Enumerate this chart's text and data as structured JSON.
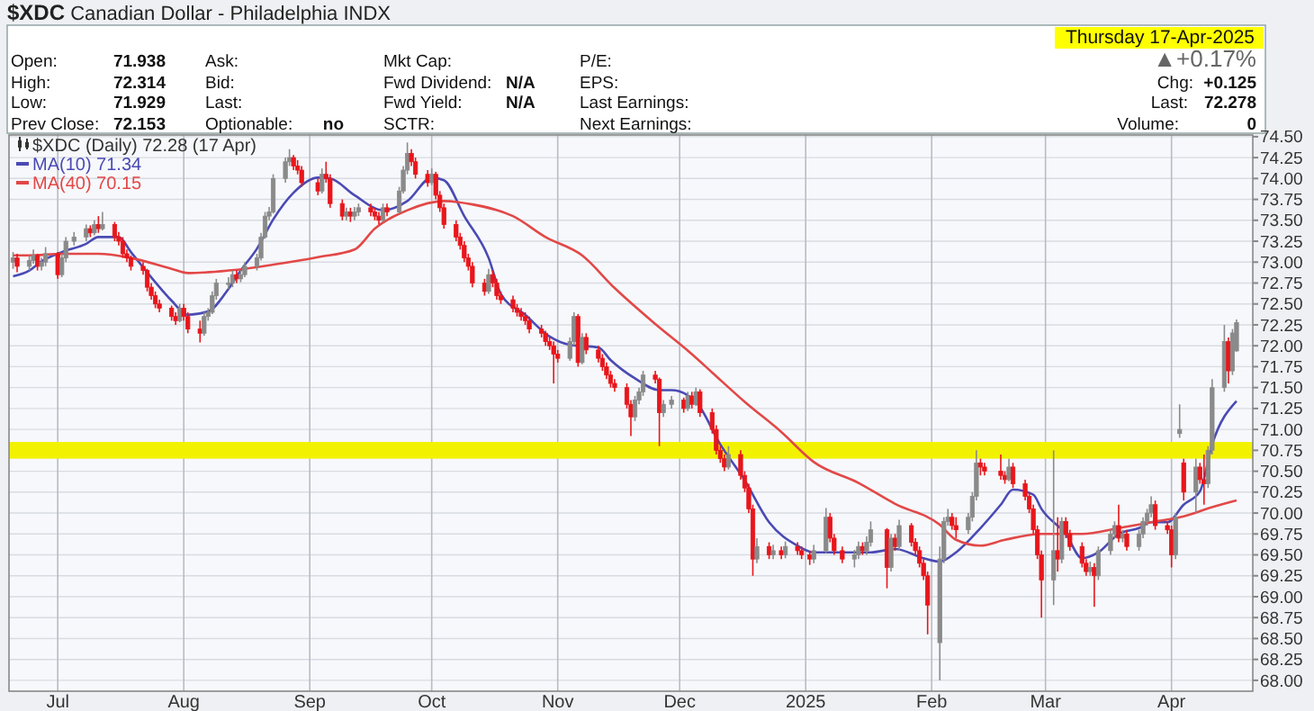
{
  "chart_data": {
    "type": "candlestick",
    "title": "$XDC Canadian Dollar - Philadelphia INDX",
    "annotations": [
      "Open:",
      "71.938",
      "High:",
      "72.314",
      "Low:",
      "71.929",
      "Prev Close:",
      "72.153",
      "Ask:",
      "Bid:",
      "Last:",
      "Optionable:",
      "no",
      "Mkt Cap:",
      "Fwd Dividend:",
      "N/A",
      "Fwd Yield:",
      "N/A",
      "SCTR:",
      "P/E:",
      "EPS:",
      "Last Earnings:",
      "Next Earnings:",
      "Thursday  17-Apr-2025",
      "▲+0.17%",
      "Chg:",
      "+0.125",
      "Last:",
      "72.278",
      "Volume:",
      "0"
    ],
    "xlim": [
      "2024-06-19",
      "2025-04-21"
    ],
    "xticks": [
      {
        "value": "2024-07-01",
        "label": "Jul"
      },
      {
        "value": "2024-08-01",
        "label": "Aug"
      },
      {
        "value": "2024-09-01",
        "label": "Sep"
      },
      {
        "value": "2024-10-01",
        "label": "Oct"
      },
      {
        "value": "2024-11-01",
        "label": "Nov"
      },
      {
        "value": "2024-12-01",
        "label": "Dec"
      },
      {
        "value": "2025-01-01",
        "label": "2025"
      },
      {
        "value": "2025-02-01",
        "label": "Feb"
      },
      {
        "value": "2025-03-01",
        "label": "Mar"
      },
      {
        "value": "2025-04-01",
        "label": "Apr"
      }
    ],
    "ylim": [
      67.87,
      74.52
    ],
    "yticks": [
      {
        "value": 68,
        "label": "68.00"
      },
      {
        "value": 68.25,
        "label": "68.25"
      },
      {
        "value": 68.5,
        "label": "68.50"
      },
      {
        "value": 68.75,
        "label": "68.75"
      },
      {
        "value": 69,
        "label": "69.00"
      },
      {
        "value": 69.25,
        "label": "69.25"
      },
      {
        "value": 69.5,
        "label": "69.50"
      },
      {
        "value": 69.75,
        "label": "69.75"
      },
      {
        "value": 70,
        "label": "70.00"
      },
      {
        "value": 70.25,
        "label": "70.25"
      },
      {
        "value": 70.5,
        "label": "70.50"
      },
      {
        "value": 70.75,
        "label": "70.75"
      },
      {
        "value": 71,
        "label": "71.00"
      },
      {
        "value": 71.25,
        "label": "71.25"
      },
      {
        "value": 71.5,
        "label": "71.50"
      },
      {
        "value": 71.75,
        "label": "71.75"
      },
      {
        "value": 72,
        "label": "72.00"
      },
      {
        "value": 72.25,
        "label": "72.25"
      },
      {
        "value": 72.5,
        "label": "72.50"
      },
      {
        "value": 72.75,
        "label": "72.75"
      },
      {
        "value": 73,
        "label": "73.00"
      },
      {
        "value": 73.25,
        "label": "73.25"
      },
      {
        "value": 73.5,
        "label": "73.50"
      },
      {
        "value": 73.75,
        "label": "73.75"
      },
      {
        "value": 74,
        "label": "74.00"
      },
      {
        "value": 74.25,
        "label": "74.25"
      },
      {
        "value": 74.5,
        "label": "74.50"
      }
    ],
    "grid": true,
    "legend": "top left",
    "bands": [
      {
        "axis": "y",
        "from": 70.65,
        "to": 70.85,
        "color": "#f2f200"
      }
    ],
    "series": [
      {
        "name": "$XDC (Daily) 72.28 (17 Apr)",
        "type": "candlestick",
        "colors": [
          "#8a8a8a",
          "#e8161b",
          "#8a8a8a",
          "#8a8a8a",
          "#e8161b",
          "#8a8a8a",
          "#8a8a8a",
          "#e8161b",
          "#8a8a8a",
          "#8a8a8a",
          "#8a8a8a",
          "#8a8a8a",
          "#e8161b",
          "#8a8a8a",
          "#e8161b",
          "#8a8a8a",
          "#e8161b",
          "#e8161b",
          "#e8161b",
          "#e8161b",
          "#e8161b",
          "#e8161b",
          "#e8161b",
          "#e8161b",
          "#e8161b",
          "#e8161b",
          "#e8161b",
          "#e8161b",
          "#8a8a8a",
          "#e8161b",
          "#e8161b",
          "#e8161b",
          "#8a8a8a",
          "#8a8a8a",
          "#8a8a8a",
          "#8a8a8a",
          "#8a8a8a",
          "#8a8a8a",
          "#e8161b",
          "#8a8a8a",
          "#8a8a8a",
          "#8a8a8a",
          "#8a8a8a",
          "#8a8a8a",
          "#8a8a8a",
          "#8a8a8a",
          "#8a8a8a",
          "#8a8a8a",
          "#e8161b",
          "#e8161b",
          "#e8161b",
          "#e8161b",
          "#8a8a8a",
          "#e8161b",
          "#e8161b",
          "#e8161b",
          "#8a8a8a",
          "#e8161b",
          "#8a8a8a",
          "#8a8a8a",
          "#e8161b",
          "#e8161b",
          "#e8161b",
          "#8a8a8a",
          "#e8161b",
          "#8a8a8a",
          "#8a8a8a",
          "#8a8a8a",
          "#e8161b",
          "#e8161b",
          "#e8161b",
          "#8a8a8a",
          "#e8161b",
          "#e8161b",
          "#e8161b",
          "#e8161b",
          "#e8161b",
          "#e8161b",
          "#e8161b",
          "#e8161b",
          "#e8161b",
          "#8a8a8a",
          "#e8161b",
          "#e8161b",
          "#e8161b",
          "#e8161b",
          "#e8161b",
          "#e8161b",
          "#e8161b",
          "#e8161b",
          "#e8161b",
          "#e8161b",
          "#e8161b",
          "#e8161b",
          "#e8161b",
          "#8a8a8a",
          "#8a8a8a",
          "#e8161b",
          "#8a8a8a",
          "#e8161b",
          "#e8161b",
          "#e8161b",
          "#e8161b",
          "#e8161b",
          "#e8161b",
          "#e8161b",
          "#e8161b",
          "#8a8a8a",
          "#8a8a8a",
          "#8a8a8a",
          "#e8161b",
          "#e8161b",
          "#8a8a8a",
          "#8a8a8a",
          "#e8161b",
          "#8a8a8a",
          "#e8161b",
          "#8a8a8a",
          "#e8161b",
          "#e8161b",
          "#e8161b",
          "#e8161b",
          "#e8161b",
          "#8a8a8a",
          "#e8161b",
          "#e8161b",
          "#e8161b",
          "#e8161b",
          "#8a8a8a",
          "#e8161b",
          "#8a8a8a",
          "#e8161b",
          "#8a8a8a",
          "#e8161b",
          "#e8161b",
          "#e8161b",
          "#8a8a8a",
          "#8a8a8a",
          "#e8161b",
          "#e8161b",
          "#e8161b",
          "#8a8a8a",
          "#8a8a8a",
          "#e8161b",
          "#8a8a8a",
          "#8a8a8a",
          "#e8161b",
          "#8a8a8a",
          "#e8161b",
          "#8a8a8a",
          "#e8161b",
          "#e8161b",
          "#e8161b",
          "#e8161b",
          "#e8161b",
          "#8a8a8a",
          "#8a8a8a",
          "#8a8a8a",
          "#e8161b",
          "#e8161b",
          "#8a8a8a",
          "#8a8a8a",
          "#8a8a8a",
          "#e8161b",
          "#e8161b",
          "#e8161b",
          "#e8161b",
          "#8a8a8a",
          "#e8161b",
          "#e8161b",
          "#e8161b",
          "#e8161b",
          "#e8161b",
          "#e8161b",
          "#8a8a8a",
          "#e8161b",
          "#8a8a8a",
          "#e8161b",
          "#e8161b",
          "#e8161b",
          "#e8161b",
          "#8a8a8a",
          "#e8161b",
          "#8a8a8a",
          "#8a8a8a",
          "#8a8a8a",
          "#e8161b",
          "#8a8a8a",
          "#e8161b",
          "#8a8a8a",
          "#8a8a8a",
          "#8a8a8a",
          "#8a8a8a",
          "#e8161b",
          "#e8161b",
          "#e8161b",
          "#8a8a8a",
          "#8a8a8a",
          "#e8161b",
          "#8a8a8a",
          "#e8161b",
          "#e8161b",
          "#8a8a8a",
          "#8a8a8a",
          "#8a8a8a",
          "#e8161b",
          "#8a8a8a",
          "#8a8a8a"
        ],
        "x": [
          "2024-06-20",
          "2024-06-21",
          "2024-06-24",
          "2024-06-25",
          "2024-06-26",
          "2024-06-27",
          "2024-06-28",
          "2024-07-01",
          "2024-07-02",
          "2024-07-03",
          "2024-07-05",
          "2024-07-08",
          "2024-07-09",
          "2024-07-10",
          "2024-07-11",
          "2024-07-12",
          "2024-07-15",
          "2024-07-16",
          "2024-07-17",
          "2024-07-18",
          "2024-07-19",
          "2024-07-22",
          "2024-07-23",
          "2024-07-24",
          "2024-07-25",
          "2024-07-26",
          "2024-07-29",
          "2024-07-30",
          "2024-07-31",
          "2024-08-01",
          "2024-08-02",
          "2024-08-05",
          "2024-08-06",
          "2024-08-07",
          "2024-08-08",
          "2024-08-09",
          "2024-08-12",
          "2024-08-13",
          "2024-08-14",
          "2024-08-15",
          "2024-08-16",
          "2024-08-19",
          "2024-08-20",
          "2024-08-21",
          "2024-08-22",
          "2024-08-23",
          "2024-08-26",
          "2024-08-27",
          "2024-08-28",
          "2024-08-29",
          "2024-08-30",
          "2024-09-03",
          "2024-09-04",
          "2024-09-05",
          "2024-09-06",
          "2024-09-09",
          "2024-09-10",
          "2024-09-11",
          "2024-09-12",
          "2024-09-13",
          "2024-09-16",
          "2024-09-17",
          "2024-09-18",
          "2024-09-19",
          "2024-09-20",
          "2024-09-23",
          "2024-09-24",
          "2024-09-25",
          "2024-09-26",
          "2024-09-27",
          "2024-09-30",
          "2024-10-01",
          "2024-10-02",
          "2024-10-03",
          "2024-10-04",
          "2024-10-07",
          "2024-10-08",
          "2024-10-09",
          "2024-10-10",
          "2024-10-11",
          "2024-10-14",
          "2024-10-15",
          "2024-10-16",
          "2024-10-17",
          "2024-10-18",
          "2024-10-21",
          "2024-10-22",
          "2024-10-23",
          "2024-10-24",
          "2024-10-25",
          "2024-10-28",
          "2024-10-29",
          "2024-10-30",
          "2024-10-31",
          "2024-11-01",
          "2024-11-04",
          "2024-11-05",
          "2024-11-06",
          "2024-11-07",
          "2024-11-08",
          "2024-11-11",
          "2024-11-12",
          "2024-11-13",
          "2024-11-14",
          "2024-11-15",
          "2024-11-18",
          "2024-11-19",
          "2024-11-20",
          "2024-11-21",
          "2024-11-22",
          "2024-11-25",
          "2024-11-26",
          "2024-11-27",
          "2024-11-29",
          "2024-12-02",
          "2024-12-03",
          "2024-12-04",
          "2024-12-05",
          "2024-12-06",
          "2024-12-09",
          "2024-12-10",
          "2024-12-11",
          "2024-12-12",
          "2024-12-13",
          "2024-12-16",
          "2024-12-17",
          "2024-12-18",
          "2024-12-19",
          "2024-12-20",
          "2024-12-23",
          "2024-12-24",
          "2024-12-26",
          "2024-12-27",
          "2024-12-30",
          "2024-12-31",
          "2025-01-02",
          "2025-01-03",
          "2025-01-06",
          "2025-01-07",
          "2025-01-08",
          "2025-01-10",
          "2025-01-13",
          "2025-01-14",
          "2025-01-15",
          "2025-01-16",
          "2025-01-17",
          "2025-01-21",
          "2025-01-22",
          "2025-01-23",
          "2025-01-24",
          "2025-01-27",
          "2025-01-28",
          "2025-01-29",
          "2025-01-30",
          "2025-01-31",
          "2025-02-03",
          "2025-02-04",
          "2025-02-05",
          "2025-02-06",
          "2025-02-07",
          "2025-02-10",
          "2025-02-11",
          "2025-02-12",
          "2025-02-13",
          "2025-02-14",
          "2025-02-18",
          "2025-02-19",
          "2025-02-20",
          "2025-02-21",
          "2025-02-24",
          "2025-02-25",
          "2025-02-26",
          "2025-02-27",
          "2025-02-28",
          "2025-03-03",
          "2025-03-04",
          "2025-03-05",
          "2025-03-06",
          "2025-03-07",
          "2025-03-10",
          "2025-03-11",
          "2025-03-12",
          "2025-03-13",
          "2025-03-14",
          "2025-03-17",
          "2025-03-18",
          "2025-03-19",
          "2025-03-20",
          "2025-03-21",
          "2025-03-24",
          "2025-03-25",
          "2025-03-26",
          "2025-03-27",
          "2025-03-28",
          "2025-03-31",
          "2025-04-01",
          "2025-04-02",
          "2025-04-03",
          "2025-04-04",
          "2025-04-07",
          "2025-04-08",
          "2025-04-09",
          "2025-04-10",
          "2025-04-11",
          "2025-04-14",
          "2025-04-15",
          "2025-04-16",
          "2025-04-17"
        ],
        "ohlc": [
          [
            73.0,
            73.12,
            72.92,
            73.05
          ],
          [
            73.05,
            73.1,
            72.88,
            72.95
          ],
          [
            72.95,
            73.08,
            72.9,
            73.02
          ],
          [
            73.02,
            73.15,
            72.98,
            73.08
          ],
          [
            73.08,
            73.1,
            72.9,
            72.95
          ],
          [
            72.95,
            73.05,
            72.9,
            73.0
          ],
          [
            73.0,
            73.18,
            72.95,
            73.1
          ],
          [
            73.1,
            73.12,
            72.8,
            72.85
          ],
          [
            72.85,
            73.1,
            72.82,
            73.05
          ],
          [
            73.05,
            73.3,
            73.0,
            73.25
          ],
          [
            73.25,
            73.36,
            73.2,
            73.3
          ],
          [
            73.3,
            73.45,
            73.25,
            73.4
          ],
          [
            73.4,
            73.44,
            73.3,
            73.35
          ],
          [
            73.35,
            73.5,
            73.32,
            73.45
          ],
          [
            73.45,
            73.55,
            73.35,
            73.4
          ],
          [
            73.4,
            73.6,
            73.38,
            73.45
          ],
          [
            73.45,
            73.48,
            73.25,
            73.3
          ],
          [
            73.3,
            73.36,
            73.2,
            73.25
          ],
          [
            73.25,
            73.3,
            73.05,
            73.1
          ],
          [
            73.1,
            73.15,
            73.0,
            73.05
          ],
          [
            73.05,
            73.08,
            72.9,
            72.95
          ],
          [
            72.95,
            73.0,
            72.85,
            72.9
          ],
          [
            72.9,
            72.92,
            72.65,
            72.7
          ],
          [
            72.7,
            72.75,
            72.55,
            72.6
          ],
          [
            72.6,
            72.65,
            72.45,
            72.5
          ],
          [
            72.5,
            72.55,
            72.4,
            72.45
          ],
          [
            72.45,
            72.48,
            72.3,
            72.35
          ],
          [
            72.35,
            72.4,
            72.25,
            72.3
          ],
          [
            72.3,
            72.5,
            72.28,
            72.45
          ],
          [
            72.45,
            72.5,
            72.3,
            72.35
          ],
          [
            72.35,
            72.4,
            72.15,
            72.2
          ],
          [
            72.2,
            72.3,
            72.04,
            72.15
          ],
          [
            72.15,
            72.4,
            72.12,
            72.35
          ],
          [
            72.35,
            72.45,
            72.3,
            72.4
          ],
          [
            72.4,
            72.65,
            72.38,
            72.6
          ],
          [
            72.6,
            72.8,
            72.55,
            72.75
          ],
          [
            72.75,
            72.82,
            72.68,
            72.75
          ],
          [
            72.75,
            72.9,
            72.7,
            72.85
          ],
          [
            72.85,
            72.9,
            72.75,
            72.8
          ],
          [
            72.8,
            72.9,
            72.76,
            72.85
          ],
          [
            72.85,
            73.0,
            72.82,
            72.95
          ],
          [
            72.95,
            73.1,
            72.9,
            73.05
          ],
          [
            73.05,
            73.35,
            73.02,
            73.3
          ],
          [
            73.3,
            73.6,
            73.28,
            73.55
          ],
          [
            73.55,
            73.66,
            73.5,
            73.6
          ],
          [
            73.6,
            74.05,
            73.58,
            74.0
          ],
          [
            74.0,
            74.25,
            73.95,
            74.2
          ],
          [
            74.2,
            74.35,
            74.15,
            74.25
          ],
          [
            74.25,
            74.28,
            74.1,
            74.15
          ],
          [
            74.15,
            74.22,
            74.05,
            74.1
          ],
          [
            74.1,
            74.15,
            73.9,
            73.95
          ],
          [
            73.95,
            74.0,
            73.8,
            73.85
          ],
          [
            73.85,
            74.12,
            73.82,
            74.05
          ],
          [
            74.05,
            74.2,
            73.95,
            74.0
          ],
          [
            74.0,
            74.05,
            73.65,
            73.7
          ],
          [
            73.7,
            73.75,
            73.5,
            73.55
          ],
          [
            73.55,
            73.65,
            73.5,
            73.6
          ],
          [
            73.6,
            73.65,
            73.48,
            73.55
          ],
          [
            73.55,
            73.66,
            73.5,
            73.6
          ],
          [
            73.6,
            73.7,
            73.55,
            73.65
          ],
          [
            73.65,
            73.7,
            73.55,
            73.6
          ],
          [
            73.6,
            73.65,
            73.5,
            73.55
          ],
          [
            73.55,
            73.6,
            73.45,
            73.5
          ],
          [
            73.5,
            73.7,
            73.48,
            73.65
          ],
          [
            73.65,
            73.7,
            73.55,
            73.6
          ],
          [
            73.6,
            73.9,
            73.58,
            73.85
          ],
          [
            73.85,
            74.15,
            73.82,
            74.1
          ],
          [
            74.1,
            74.43,
            74.05,
            74.3
          ],
          [
            74.3,
            74.35,
            74.15,
            74.2
          ],
          [
            74.2,
            74.25,
            74.0,
            74.05
          ],
          [
            74.05,
            74.1,
            73.9,
            73.95
          ],
          [
            73.95,
            74.12,
            73.92,
            74.05
          ],
          [
            74.05,
            74.08,
            73.75,
            73.8
          ],
          [
            73.8,
            73.85,
            73.6,
            73.65
          ],
          [
            73.65,
            73.7,
            73.4,
            73.45
          ],
          [
            73.45,
            73.5,
            73.25,
            73.3
          ],
          [
            73.3,
            73.35,
            73.15,
            73.2
          ],
          [
            73.2,
            73.25,
            73.0,
            73.05
          ],
          [
            73.05,
            73.1,
            72.9,
            72.95
          ],
          [
            72.95,
            73.0,
            72.7,
            72.75
          ],
          [
            72.75,
            72.8,
            72.6,
            72.65
          ],
          [
            72.65,
            72.92,
            72.62,
            72.85
          ],
          [
            72.85,
            72.9,
            72.7,
            72.75
          ],
          [
            72.75,
            72.8,
            72.55,
            72.6
          ],
          [
            72.6,
            72.65,
            72.5,
            72.55
          ],
          [
            72.55,
            72.6,
            72.4,
            72.45
          ],
          [
            72.45,
            72.5,
            72.35,
            72.4
          ],
          [
            72.4,
            72.45,
            72.3,
            72.35
          ],
          [
            72.35,
            72.4,
            72.25,
            72.3
          ],
          [
            72.3,
            72.35,
            72.15,
            72.2
          ],
          [
            72.2,
            72.25,
            72.1,
            72.15
          ],
          [
            72.15,
            72.18,
            72.0,
            72.05
          ],
          [
            72.05,
            72.1,
            71.95,
            72.0
          ],
          [
            72.0,
            72.05,
            71.55,
            71.9
          ],
          [
            71.9,
            71.95,
            71.8,
            71.85
          ],
          [
            71.85,
            72.1,
            71.82,
            72.05
          ],
          [
            72.05,
            72.4,
            72.0,
            72.35
          ],
          [
            72.35,
            72.38,
            71.75,
            71.8
          ],
          [
            71.8,
            72.15,
            71.78,
            72.1
          ],
          [
            72.1,
            72.15,
            71.9,
            71.95
          ],
          [
            71.95,
            72.0,
            71.8,
            71.85
          ],
          [
            71.85,
            71.9,
            71.7,
            71.75
          ],
          [
            71.75,
            71.8,
            71.6,
            71.65
          ],
          [
            71.65,
            71.7,
            71.5,
            71.55
          ],
          [
            71.55,
            71.6,
            71.45,
            71.5
          ],
          [
            71.5,
            71.55,
            71.25,
            71.3
          ],
          [
            71.3,
            71.35,
            70.92,
            71.15
          ],
          [
            71.15,
            71.4,
            71.1,
            71.35
          ],
          [
            71.35,
            71.5,
            71.3,
            71.45
          ],
          [
            71.45,
            71.7,
            71.4,
            71.65
          ],
          [
            71.65,
            71.7,
            71.55,
            71.6
          ],
          [
            71.6,
            71.62,
            70.8,
            71.2
          ],
          [
            71.2,
            71.35,
            71.15,
            71.3
          ],
          [
            71.3,
            71.4,
            71.25,
            71.35
          ],
          [
            71.35,
            71.38,
            71.2,
            71.25
          ],
          [
            71.25,
            71.45,
            71.22,
            71.4
          ],
          [
            71.4,
            71.45,
            71.25,
            71.3
          ],
          [
            71.3,
            71.5,
            71.28,
            71.45
          ],
          [
            71.45,
            71.48,
            71.15,
            71.2
          ],
          [
            71.2,
            71.25,
            70.95,
            71.0
          ],
          [
            71.0,
            71.05,
            70.7,
            70.75
          ],
          [
            70.75,
            70.8,
            70.6,
            70.65
          ],
          [
            70.65,
            70.7,
            70.5,
            70.55
          ],
          [
            70.55,
            70.8,
            70.52,
            70.7
          ],
          [
            70.7,
            70.75,
            70.4,
            70.45
          ],
          [
            70.45,
            70.5,
            70.25,
            70.3
          ],
          [
            70.3,
            70.35,
            70.0,
            70.05
          ],
          [
            70.05,
            70.1,
            69.25,
            69.45
          ],
          [
            69.45,
            69.7,
            69.4,
            69.6
          ],
          [
            69.6,
            69.65,
            69.45,
            69.5
          ],
          [
            69.5,
            69.62,
            69.45,
            69.55
          ],
          [
            69.55,
            69.6,
            69.45,
            69.5
          ],
          [
            69.5,
            69.66,
            69.46,
            69.6
          ],
          [
            69.6,
            69.65,
            69.5,
            69.55
          ],
          [
            69.55,
            69.6,
            69.45,
            69.5
          ],
          [
            69.5,
            69.55,
            69.38,
            69.45
          ],
          [
            69.45,
            69.62,
            69.4,
            69.55
          ],
          [
            69.55,
            70.06,
            69.52,
            69.95
          ],
          [
            69.95,
            70.0,
            69.65,
            69.7
          ],
          [
            69.7,
            69.75,
            69.5,
            69.55
          ],
          [
            69.55,
            69.6,
            69.4,
            69.45
          ],
          [
            69.45,
            69.56,
            69.35,
            69.5
          ],
          [
            69.5,
            69.66,
            69.45,
            69.6
          ],
          [
            69.6,
            69.65,
            69.5,
            69.55
          ],
          [
            69.55,
            69.72,
            69.5,
            69.65
          ],
          [
            69.65,
            69.9,
            69.6,
            69.8
          ],
          [
            69.8,
            69.82,
            69.1,
            69.35
          ],
          [
            69.35,
            69.75,
            69.3,
            69.7
          ],
          [
            69.7,
            69.75,
            69.55,
            69.6
          ],
          [
            69.6,
            69.92,
            69.55,
            69.85
          ],
          [
            69.85,
            69.88,
            69.6,
            69.65
          ],
          [
            69.65,
            69.7,
            69.5,
            69.55
          ],
          [
            69.55,
            69.6,
            69.35,
            69.4
          ],
          [
            69.4,
            69.45,
            69.2,
            69.25
          ],
          [
            69.25,
            69.3,
            68.55,
            68.9
          ],
          [
            68.45,
            69.6,
            68.0,
            69.45
          ],
          [
            69.45,
            69.95,
            69.4,
            69.9
          ],
          [
            69.9,
            70.05,
            69.85,
            69.95
          ],
          [
            69.95,
            70.0,
            69.8,
            69.85
          ],
          [
            69.85,
            69.95,
            69.7,
            69.8
          ],
          [
            69.8,
            70.0,
            69.75,
            69.95
          ],
          [
            69.95,
            70.25,
            69.9,
            70.2
          ],
          [
            70.2,
            70.75,
            70.15,
            70.6
          ],
          [
            70.6,
            70.65,
            70.45,
            70.55
          ],
          [
            70.55,
            70.6,
            70.45,
            70.5
          ],
          [
            70.5,
            70.7,
            70.4,
            70.45
          ],
          [
            70.45,
            70.5,
            70.35,
            70.4
          ],
          [
            70.4,
            70.65,
            70.38,
            70.55
          ],
          [
            70.55,
            70.6,
            70.3,
            70.35
          ],
          [
            70.35,
            70.4,
            70.15,
            70.2
          ],
          [
            70.2,
            70.25,
            70.0,
            70.05
          ],
          [
            70.05,
            70.1,
            69.75,
            69.8
          ],
          [
            69.8,
            69.85,
            69.45,
            69.5
          ],
          [
            69.5,
            69.55,
            68.75,
            69.2
          ],
          [
            69.2,
            70.75,
            68.9,
            69.55
          ],
          [
            69.55,
            69.95,
            69.3,
            69.45
          ],
          [
            69.45,
            69.95,
            69.4,
            69.9
          ],
          [
            69.9,
            69.95,
            69.7,
            69.75
          ],
          [
            69.75,
            69.8,
            69.55,
            69.6
          ],
          [
            69.6,
            69.65,
            69.35,
            69.4
          ],
          [
            69.4,
            69.45,
            69.25,
            69.3
          ],
          [
            69.3,
            69.42,
            69.25,
            69.35
          ],
          [
            69.35,
            69.4,
            68.88,
            69.25
          ],
          [
            69.25,
            69.6,
            69.2,
            69.55
          ],
          [
            69.55,
            69.8,
            69.5,
            69.75
          ],
          [
            69.75,
            69.9,
            69.7,
            69.85
          ],
          [
            69.85,
            70.1,
            69.65,
            69.7
          ],
          [
            69.7,
            69.8,
            69.65,
            69.75
          ],
          [
            69.75,
            69.8,
            69.55,
            69.6
          ],
          [
            69.6,
            69.8,
            69.55,
            69.75
          ],
          [
            69.75,
            69.95,
            69.7,
            69.9
          ],
          [
            69.9,
            70.05,
            69.85,
            70.0
          ],
          [
            70.0,
            70.2,
            69.95,
            70.1
          ],
          [
            70.1,
            70.15,
            69.8,
            69.85
          ],
          [
            69.85,
            69.9,
            69.75,
            69.8
          ],
          [
            69.8,
            69.85,
            69.35,
            69.5
          ],
          [
            69.5,
            70.0,
            69.45,
            69.95
          ],
          [
            70.95,
            71.3,
            70.9,
            71.0
          ],
          [
            70.6,
            70.65,
            70.15,
            70.25
          ],
          [
            70.25,
            70.65,
            70.0,
            70.55
          ],
          [
            70.55,
            70.6,
            70.35,
            70.4
          ],
          [
            70.4,
            70.7,
            70.1,
            70.35
          ],
          [
            70.35,
            70.8,
            70.3,
            70.75
          ],
          [
            70.75,
            71.6,
            70.7,
            71.5
          ],
          [
            71.5,
            72.25,
            71.45,
            72.05
          ],
          [
            72.05,
            72.1,
            71.55,
            71.7
          ],
          [
            71.7,
            72.2,
            71.65,
            72.153
          ],
          [
            71.938,
            72.314,
            71.929,
            72.278
          ]
        ]
      },
      {
        "name": "MA(10) 71.34",
        "type": "line",
        "color": "#4a4ab4",
        "x": [
          "2024-06-20",
          "2024-06-24",
          "2024-06-27",
          "2024-07-02",
          "2024-07-08",
          "2024-07-11",
          "2024-07-16",
          "2024-07-19",
          "2024-07-25",
          "2024-07-29",
          "2024-08-02",
          "2024-08-07",
          "2024-08-12",
          "2024-08-15",
          "2024-08-19",
          "2024-08-23",
          "2024-08-28",
          "2024-09-03",
          "2024-09-06",
          "2024-09-12",
          "2024-09-19",
          "2024-09-25",
          "2024-10-01",
          "2024-10-04",
          "2024-10-09",
          "2024-10-15",
          "2024-10-18",
          "2024-10-24",
          "2024-10-30",
          "2024-11-04",
          "2024-11-11",
          "2024-11-14",
          "2024-11-20",
          "2024-11-26",
          "2024-11-29",
          "2024-12-05",
          "2024-12-11",
          "2024-12-17",
          "2024-12-23",
          "2024-12-30",
          "2025-01-03",
          "2025-01-10",
          "2025-01-17",
          "2025-01-23",
          "2025-01-30",
          "2025-02-03",
          "2025-02-07",
          "2025-02-13",
          "2025-02-18",
          "2025-02-21",
          "2025-02-26",
          "2025-02-28",
          "2025-03-06",
          "2025-03-10",
          "2025-03-14",
          "2025-03-19",
          "2025-03-24",
          "2025-03-27",
          "2025-03-31",
          "2025-04-04",
          "2025-04-08",
          "2025-04-11",
          "2025-04-17"
        ],
        "values": [
          72.83,
          72.9,
          73.01,
          73.12,
          73.22,
          73.3,
          73.3,
          73.12,
          72.76,
          72.54,
          72.37,
          72.41,
          72.68,
          72.9,
          73.16,
          73.51,
          73.83,
          74.01,
          74.0,
          73.8,
          73.62,
          73.73,
          74.01,
          73.98,
          73.55,
          73.05,
          72.62,
          72.37,
          72.11,
          72.01,
          71.98,
          71.83,
          71.61,
          71.47,
          71.47,
          71.33,
          70.82,
          70.39,
          69.89,
          69.61,
          69.53,
          69.53,
          69.53,
          69.57,
          69.46,
          69.42,
          69.53,
          69.82,
          70.1,
          70.28,
          70.22,
          70.05,
          69.75,
          69.46,
          69.53,
          69.75,
          69.82,
          69.89,
          69.89,
          70.1,
          70.26,
          70.82,
          71.34
        ]
      },
      {
        "name": "MA(40) 70.15",
        "type": "line",
        "color": "#e24848",
        "x": [
          "2024-06-20",
          "2024-06-24",
          "2024-07-02",
          "2024-07-11",
          "2024-07-19",
          "2024-07-29",
          "2024-08-02",
          "2024-08-12",
          "2024-08-16",
          "2024-08-23",
          "2024-09-03",
          "2024-09-12",
          "2024-09-17",
          "2024-09-25",
          "2024-10-04",
          "2024-10-11",
          "2024-10-21",
          "2024-10-29",
          "2024-11-07",
          "2024-11-15",
          "2024-11-25",
          "2024-12-04",
          "2024-12-09",
          "2024-12-17",
          "2024-12-26",
          "2025-01-03",
          "2025-01-14",
          "2025-01-23",
          "2025-02-03",
          "2025-02-07",
          "2025-02-13",
          "2025-02-19",
          "2025-02-28",
          "2025-03-10",
          "2025-03-19",
          "2025-03-27",
          "2025-04-04",
          "2025-04-11",
          "2025-04-17"
        ],
        "values": [
          73.08,
          73.08,
          73.1,
          73.1,
          73.05,
          72.92,
          72.87,
          72.9,
          72.92,
          72.97,
          73.06,
          73.15,
          73.4,
          73.62,
          73.73,
          73.69,
          73.55,
          73.3,
          73.08,
          72.69,
          72.26,
          71.9,
          71.68,
          71.33,
          70.97,
          70.61,
          70.36,
          70.11,
          69.86,
          69.68,
          69.61,
          69.68,
          69.75,
          69.75,
          69.82,
          69.89,
          69.96,
          70.07,
          70.15
        ]
      }
    ]
  }
}
